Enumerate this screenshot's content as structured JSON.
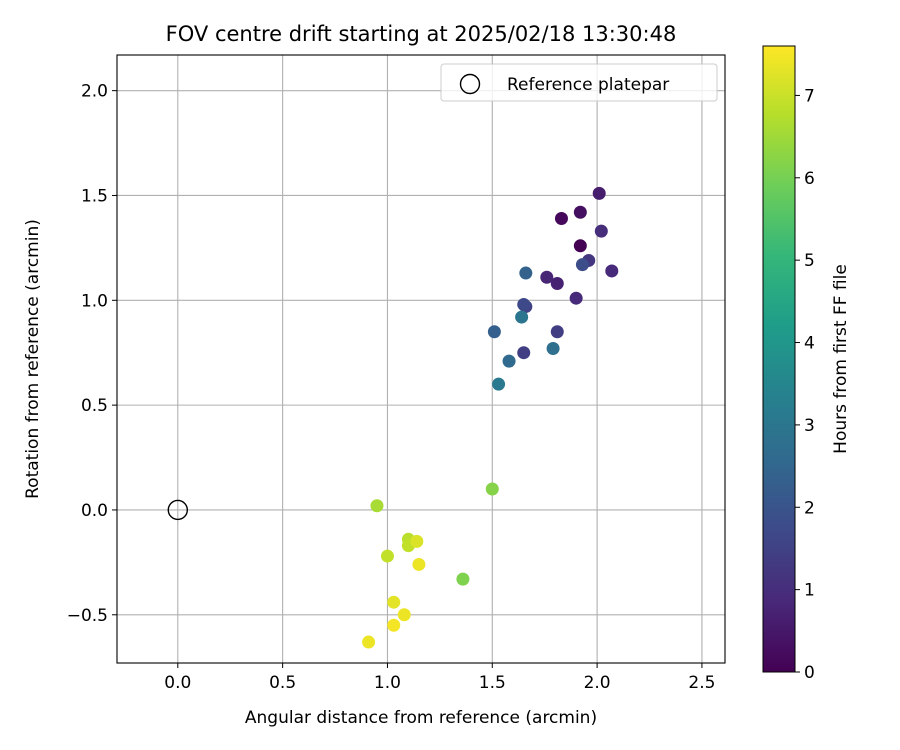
{
  "chart_data": {
    "type": "scatter",
    "title": "FOV centre drift starting at 2025/02/18 13:30:48",
    "xlabel": "Angular distance from reference (arcmin)",
    "ylabel": "Rotation from reference (arcmin)",
    "xlim": [
      -0.29,
      2.61
    ],
    "ylim": [
      -0.73,
      2.17
    ],
    "xticks": [
      0.0,
      0.5,
      1.0,
      1.5,
      2.0,
      2.5
    ],
    "xtick_labels": [
      "0.0",
      "0.5",
      "1.0",
      "1.5",
      "2.0",
      "2.5"
    ],
    "yticks": [
      -0.5,
      0.0,
      0.5,
      1.0,
      1.5,
      2.0
    ],
    "ytick_labels": [
      "−0.5",
      "0.0",
      "0.5",
      "1.0",
      "1.5",
      "2.0"
    ],
    "grid": true,
    "legend": {
      "placement": "top-right",
      "entries": [
        {
          "label": "Reference platepar",
          "marker": "open-circle"
        }
      ]
    },
    "reference_point": {
      "x": 0.0,
      "y": 0.0,
      "label": "Reference platepar"
    },
    "colorbar": {
      "label": "Hours from first FF file",
      "colormap": "viridis",
      "range": [
        0,
        7.6
      ],
      "ticks": [
        0,
        1,
        2,
        3,
        4,
        5,
        6,
        7
      ],
      "tick_labels": [
        "0",
        "1",
        "2",
        "3",
        "4",
        "5",
        "6",
        "7"
      ],
      "colors": [
        "#440154",
        "#482878",
        "#3e4989",
        "#31688e",
        "#26828e",
        "#1f9e89",
        "#35b779",
        "#6ece58",
        "#b5de2b",
        "#fde725"
      ]
    },
    "points": [
      {
        "x": 1.92,
        "y": 1.26,
        "hours": 0.0
      },
      {
        "x": 1.83,
        "y": 1.39,
        "hours": 0.15
      },
      {
        "x": 1.92,
        "y": 1.42,
        "hours": 0.3
      },
      {
        "x": 2.01,
        "y": 1.51,
        "hours": 0.6
      },
      {
        "x": 1.81,
        "y": 1.08,
        "hours": 0.7
      },
      {
        "x": 1.76,
        "y": 1.11,
        "hours": 0.8
      },
      {
        "x": 1.9,
        "y": 1.01,
        "hours": 0.9
      },
      {
        "x": 2.07,
        "y": 1.14,
        "hours": 0.9
      },
      {
        "x": 2.02,
        "y": 1.33,
        "hours": 1.0
      },
      {
        "x": 1.96,
        "y": 1.19,
        "hours": 1.2
      },
      {
        "x": 1.81,
        "y": 0.85,
        "hours": 1.4
      },
      {
        "x": 1.65,
        "y": 0.75,
        "hours": 1.4
      },
      {
        "x": 1.66,
        "y": 0.97,
        "hours": 1.5
      },
      {
        "x": 1.93,
        "y": 1.17,
        "hours": 1.8
      },
      {
        "x": 1.65,
        "y": 0.98,
        "hours": 1.7
      },
      {
        "x": 1.51,
        "y": 0.85,
        "hours": 2.3
      },
      {
        "x": 1.66,
        "y": 1.13,
        "hours": 2.4
      },
      {
        "x": 1.58,
        "y": 0.71,
        "hours": 2.6
      },
      {
        "x": 1.79,
        "y": 0.77,
        "hours": 2.8
      },
      {
        "x": 1.64,
        "y": 0.92,
        "hours": 3.0
      },
      {
        "x": 1.53,
        "y": 0.6,
        "hours": 3.1
      },
      {
        "x": 1.5,
        "y": 0.1,
        "hours": 6.2
      },
      {
        "x": 1.36,
        "y": -0.33,
        "hours": 6.1
      },
      {
        "x": 0.95,
        "y": 0.02,
        "hours": 6.6
      },
      {
        "x": 1.1,
        "y": -0.14,
        "hours": 6.8
      },
      {
        "x": 1.1,
        "y": -0.17,
        "hours": 6.9
      },
      {
        "x": 1.0,
        "y": -0.22,
        "hours": 6.9
      },
      {
        "x": 1.14,
        "y": -0.15,
        "hours": 7.2
      },
      {
        "x": 1.15,
        "y": -0.26,
        "hours": 7.4
      },
      {
        "x": 1.03,
        "y": -0.44,
        "hours": 7.3
      },
      {
        "x": 1.08,
        "y": -0.5,
        "hours": 7.4
      },
      {
        "x": 1.03,
        "y": -0.55,
        "hours": 7.5
      },
      {
        "x": 0.91,
        "y": -0.63,
        "hours": 7.4
      }
    ]
  }
}
